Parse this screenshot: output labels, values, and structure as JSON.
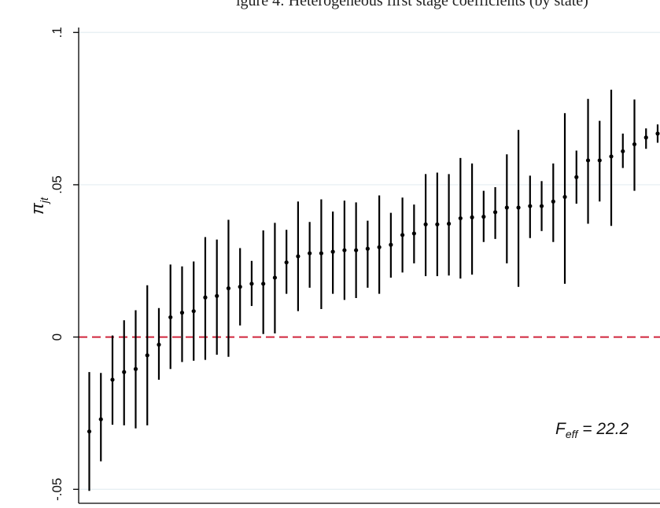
{
  "clipped_title": "igure 4: Heterogeneous first stage coefficients (by state)",
  "chart_data": {
    "type": "scatter",
    "subtype": "coefficient plot with 95% confidence intervals, sorted ascending",
    "ylabel_base": "π",
    "ylabel_subscript": "jt",
    "yticks": [
      -0.05,
      0,
      0.05,
      0.1
    ],
    "ytick_labels": [
      "-.05",
      "0",
      ".05",
      ".1"
    ],
    "ylim": [
      -0.057,
      0.1
    ],
    "reference_line": {
      "y": 0,
      "color": "#d0263c",
      "style": "dashed"
    },
    "grid": true,
    "annotation": {
      "base": "F",
      "subscript": "eff",
      "rest": " = 22.2"
    },
    "point_color": "#000000",
    "estimates": [
      -0.031,
      -0.027,
      -0.014,
      -0.0115,
      -0.0105,
      -0.006,
      -0.0025,
      0.0065,
      0.008,
      0.0085,
      0.013,
      0.0135,
      0.016,
      0.0165,
      0.0175,
      0.0175,
      0.0195,
      0.0245,
      0.0265,
      0.0275,
      0.0275,
      0.028,
      0.0285,
      0.0285,
      0.029,
      0.0295,
      0.0303,
      0.0335,
      0.034,
      0.037,
      0.037,
      0.0372,
      0.039,
      0.0393,
      0.0395,
      0.041,
      0.0425,
      0.0425,
      0.043,
      0.043,
      0.0445,
      0.046,
      0.0525,
      0.058,
      0.058,
      0.0593,
      0.061,
      0.0633,
      0.0655,
      0.0668
    ],
    "ci_lower": [
      -0.0505,
      -0.0408,
      -0.0288,
      -0.029,
      -0.03,
      -0.029,
      -0.014,
      -0.0105,
      -0.0082,
      -0.0078,
      -0.0075,
      -0.0058,
      -0.0065,
      0.0038,
      0.0102,
      0.001,
      0.0012,
      0.0142,
      0.0085,
      0.0162,
      0.0092,
      0.0142,
      0.0122,
      0.0128,
      0.0162,
      0.0142,
      0.0195,
      0.0212,
      0.0242,
      0.02,
      0.02,
      0.0202,
      0.0192,
      0.0205,
      0.0312,
      0.0322,
      0.0242,
      0.0165,
      0.0325,
      0.0348,
      0.0312,
      0.0175,
      0.0438,
      0.0372,
      0.0445,
      0.0365,
      0.0555,
      0.048,
      0.0618,
      0.0638
    ],
    "ci_upper": [
      -0.0115,
      -0.0118,
      0.0005,
      0.0055,
      0.0088,
      0.017,
      0.0095,
      0.0238,
      0.0232,
      0.0248,
      0.0328,
      0.032,
      0.0385,
      0.0292,
      0.025,
      0.035,
      0.0375,
      0.0352,
      0.0445,
      0.0378,
      0.0452,
      0.0412,
      0.0448,
      0.0442,
      0.0382,
      0.0465,
      0.0408,
      0.0458,
      0.0435,
      0.0535,
      0.054,
      0.0535,
      0.0588,
      0.057,
      0.048,
      0.0492,
      0.06,
      0.068,
      0.053,
      0.0512,
      0.057,
      0.0735,
      0.0612,
      0.0782,
      0.071,
      0.0812,
      0.0668,
      0.078,
      0.0685,
      0.0698
    ]
  }
}
